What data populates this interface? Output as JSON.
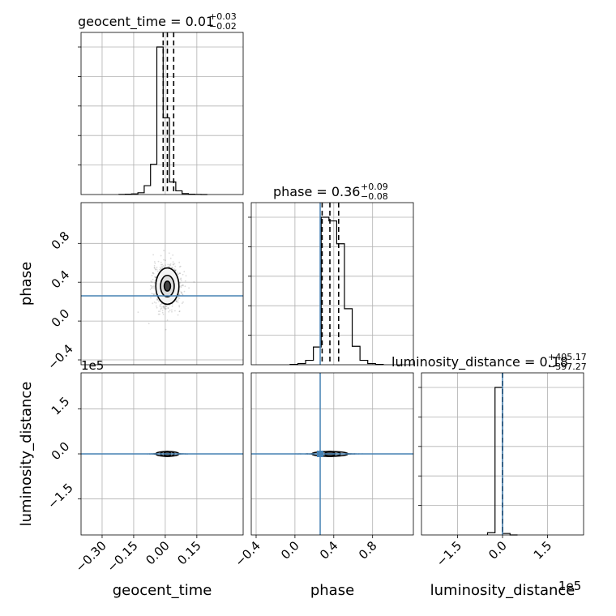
{
  "chart_data": {
    "type": "corner",
    "parameters": [
      "geocent_time",
      "phase",
      "luminosity_distance"
    ],
    "truths": {
      "geocent_time": null,
      "phase": 0.26,
      "luminosity_distance": 0
    },
    "titles": [
      {
        "param": "geocent_time",
        "text": "geocent_time = 0.01",
        "plus": "+0.03",
        "minus": "−0.02"
      },
      {
        "param": "phase",
        "text": "phase = 0.36",
        "plus": "+0.09",
        "minus": "−0.08"
      },
      {
        "param": "luminosity_distance",
        "text": "luminosity_distance = 0.18",
        "plus": "+405.17",
        "minus": "−397.27"
      }
    ],
    "axes": {
      "geocent_time": {
        "range": [
          -0.4,
          0.37
        ],
        "ticks": [
          -0.3,
          -0.15,
          0.0,
          0.15
        ],
        "tick_labels": [
          "−0.30",
          "−0.15",
          "0.00",
          "0.15"
        ],
        "label": "geocent_time"
      },
      "phase": {
        "range": [
          -0.45,
          1.22
        ],
        "ticks": [
          -0.4,
          0.0,
          0.4,
          0.8
        ],
        "tick_labels": [
          "−0.4",
          "0.0",
          "0.4",
          "0.8"
        ],
        "label": "phase"
      },
      "luminosity_distance": {
        "range": [
          -270000,
          270000
        ],
        "ticks": [
          -150000,
          0,
          150000
        ],
        "tick_labels": [
          "−1.5",
          "0.0",
          "1.5"
        ],
        "label": "luminosity_distance",
        "offset_text": "1e5"
      }
    },
    "histograms": {
      "geocent_time": {
        "bin_edges": [
          -0.22,
          -0.19,
          -0.16,
          -0.13,
          -0.1,
          -0.07,
          -0.04,
          -0.01,
          0.02,
          0.05,
          0.08,
          0.11,
          0.14,
          0.17,
          0.2
        ],
        "counts": [
          1,
          2,
          4,
          12,
          60,
          205,
          1000,
          520,
          85,
          25,
          6,
          2,
          1,
          0
        ],
        "quantiles": [
          -0.01,
          0.01,
          0.04
        ]
      },
      "phase": {
        "bin_edges": [
          -0.05,
          0.03,
          0.11,
          0.19,
          0.27,
          0.35,
          0.43,
          0.51,
          0.59,
          0.67,
          0.75,
          0.83,
          0.91
        ],
        "counts": [
          2,
          8,
          30,
          120,
          1000,
          975,
          820,
          380,
          125,
          30,
          8,
          2
        ],
        "quantiles": [
          0.28,
          0.36,
          0.45
        ]
      },
      "luminosity_distance": {
        "bin_edges": [
          -50000,
          -25000,
          0,
          25000,
          50000
        ],
        "counts": [
          15,
          1000,
          10,
          0
        ],
        "quantiles": [
          -397.27,
          0.18,
          405.17
        ]
      }
    },
    "grid": true
  }
}
